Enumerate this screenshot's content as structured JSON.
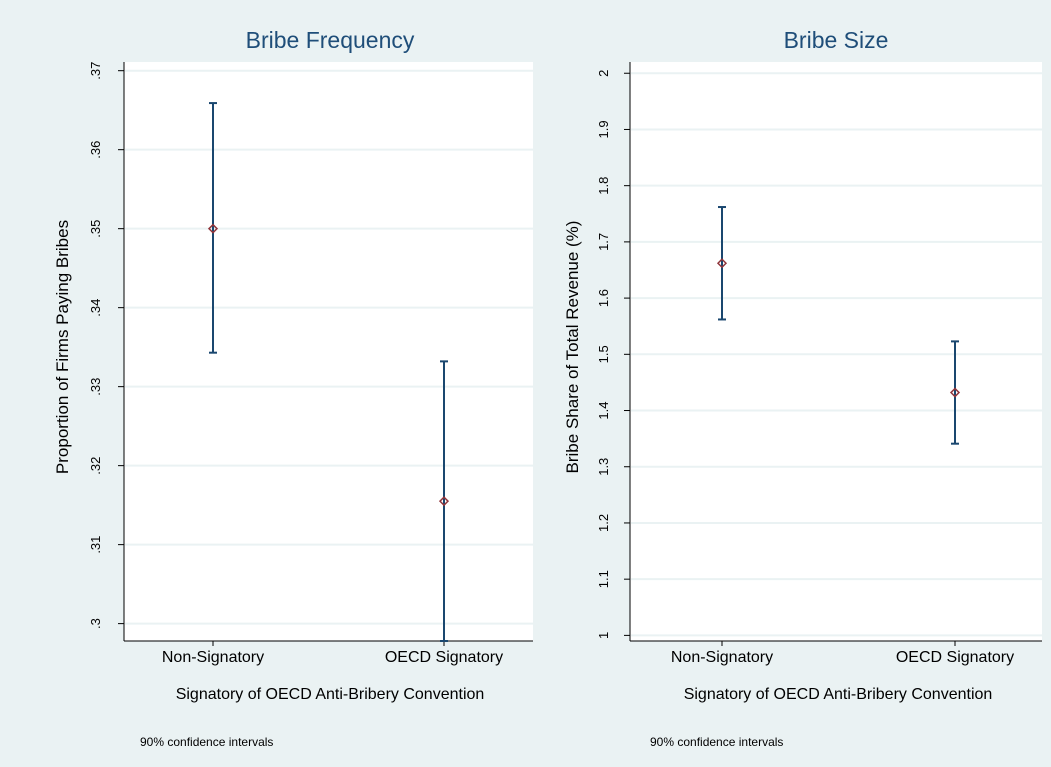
{
  "chart_data": [
    {
      "type": "scatter",
      "title": "Bribe Frequency",
      "xlabel": "Signatory of OECD Anti-Bribery Convention",
      "ylabel": "Proportion of Firms Paying Bribes",
      "note": "90% confidence intervals",
      "categories": [
        "Non-Signatory",
        "OECD Signatory"
      ],
      "points": [
        {
          "category": "Non-Signatory",
          "y": 0.35,
          "lower": 0.3343,
          "upper": 0.3659
        },
        {
          "category": "OECD Signatory",
          "y": 0.3155,
          "lower": 0.2978,
          "upper": 0.3332
        }
      ],
      "ylim": [
        0.2978,
        0.3711
      ],
      "yticks": [
        ".3",
        ".31",
        ".32",
        ".33",
        ".34",
        ".35",
        ".36",
        ".37"
      ],
      "ytick_values": [
        0.3,
        0.31,
        0.32,
        0.33,
        0.34,
        0.35,
        0.36,
        0.37
      ],
      "grid": true
    },
    {
      "type": "scatter",
      "title": "Bribe Size",
      "xlabel": "Signatory of OECD Anti-Bribery Convention",
      "ylabel": "Bribe Share of Total Revenue (%)",
      "note": "90% confidence intervals",
      "categories": [
        "Non-Signatory",
        "OECD Signatory"
      ],
      "points": [
        {
          "category": "Non-Signatory",
          "y": 1.662,
          "lower": 1.562,
          "upper": 1.762
        },
        {
          "category": "OECD Signatory",
          "y": 1.432,
          "lower": 1.341,
          "upper": 1.523
        }
      ],
      "ylim": [
        0.99,
        2.02
      ],
      "yticks": [
        "1",
        "1.1",
        "1.2",
        "1.3",
        "1.4",
        "1.5",
        "1.6",
        "1.7",
        "1.8",
        "1.9",
        "2"
      ],
      "ytick_values": [
        1.0,
        1.1,
        1.2,
        1.3,
        1.4,
        1.5,
        1.6,
        1.7,
        1.8,
        1.9,
        2.0
      ],
      "grid": true
    }
  ]
}
